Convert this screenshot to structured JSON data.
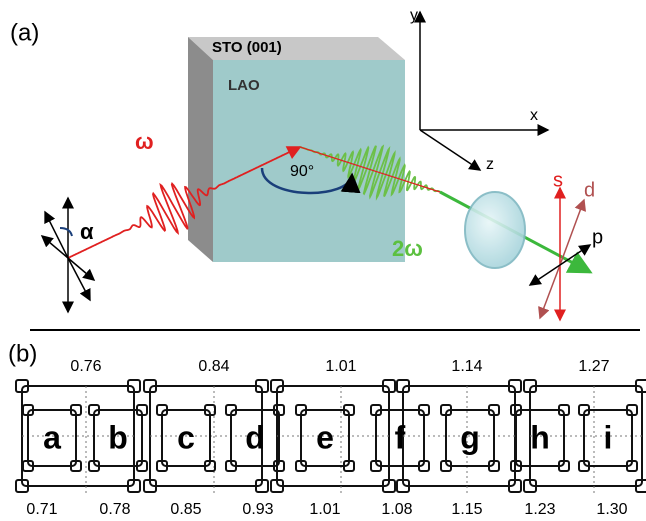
{
  "panel_a": {
    "label": "(a)",
    "substrate": "STO (001)",
    "film": "LAO",
    "axes": {
      "y": "y",
      "x": "x",
      "z": "z"
    },
    "input": "ω",
    "angle": "90°",
    "output": "2ω",
    "polarizer_angle": "α",
    "analyzer": {
      "s": "s",
      "d": "d",
      "p": "p"
    }
  },
  "panel_b": {
    "label": "(b)",
    "top_values": [
      "0.76",
      "0.84",
      "1.01",
      "1.14",
      "1.27"
    ],
    "letters": [
      "a",
      "b",
      "c",
      "d",
      "e",
      "f",
      "g",
      "h",
      "i"
    ],
    "bottom_values": [
      "0.71",
      "0.78",
      "0.85",
      "0.93",
      "1.01",
      "1.08",
      "1.15",
      "1.23",
      "1.30"
    ]
  }
}
